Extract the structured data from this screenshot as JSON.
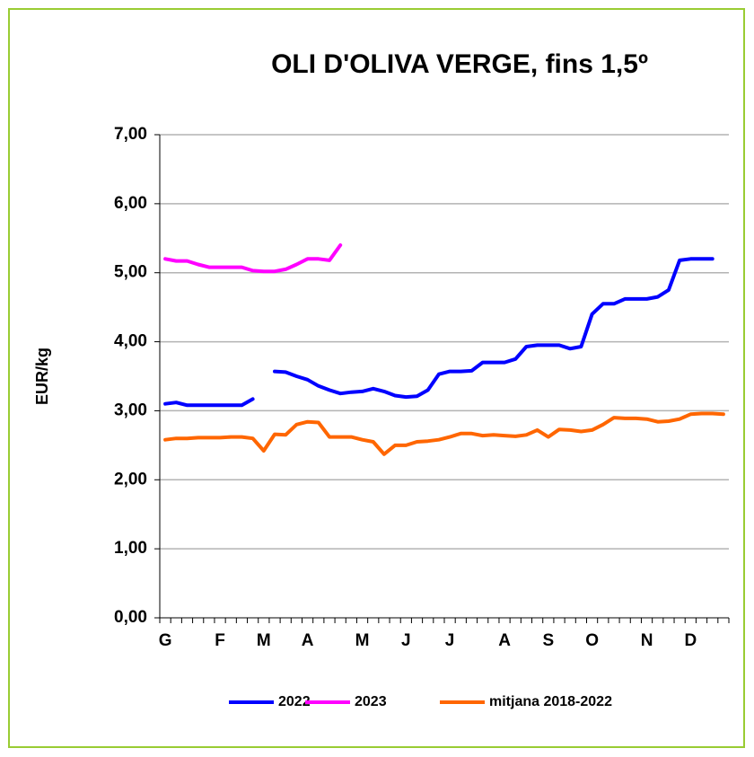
{
  "chart_data": {
    "type": "line",
    "title": "OLI D'OLIVA VERGE, fins 1,5º",
    "y_label": "EUR/kg",
    "categories": [
      "G",
      null,
      null,
      null,
      null,
      "F",
      null,
      null,
      null,
      "M",
      null,
      null,
      null,
      "A",
      null,
      null,
      null,
      null,
      "M",
      null,
      null,
      null,
      "J",
      null,
      null,
      null,
      "J",
      null,
      null,
      null,
      null,
      "A",
      null,
      null,
      null,
      "S",
      null,
      null,
      null,
      "O",
      null,
      null,
      null,
      null,
      "N",
      null,
      null,
      null,
      "D",
      null,
      null,
      null
    ],
    "series": [
      {
        "name": "2022",
        "color": "#0000ff",
        "values": [
          3.1,
          3.12,
          3.08,
          3.08,
          3.08,
          3.08,
          3.08,
          3.08,
          3.17,
          null,
          3.57,
          3.56,
          3.5,
          3.45,
          3.36,
          3.3,
          3.25,
          3.27,
          3.28,
          3.32,
          3.28,
          3.22,
          3.2,
          3.21,
          3.3,
          3.53,
          3.57,
          3.57,
          3.58,
          3.7,
          3.7,
          3.7,
          3.75,
          3.93,
          3.95,
          3.95,
          3.95,
          3.9,
          3.93,
          4.4,
          4.55,
          4.55,
          4.62,
          4.62,
          4.62,
          4.65,
          4.75,
          5.18,
          5.2,
          5.2,
          5.2,
          null
        ]
      },
      {
        "name": "2023",
        "color": "#ff00ff",
        "values": [
          5.2,
          5.17,
          5.17,
          5.12,
          5.08,
          5.08,
          5.08,
          5.08,
          5.03,
          5.02,
          5.02,
          5.05,
          5.12,
          5.2,
          5.2,
          5.18,
          5.4,
          null,
          null,
          null,
          null,
          null,
          null,
          null,
          null,
          null,
          null,
          null,
          null,
          null,
          null,
          null,
          null,
          null,
          null,
          null,
          null,
          null,
          null,
          null,
          null,
          null,
          null,
          null,
          null,
          null,
          null,
          null,
          null,
          null,
          null,
          null
        ]
      },
      {
        "name": "mitjana 2018-2022",
        "color": "#ff6600",
        "values": [
          2.58,
          2.6,
          2.6,
          2.61,
          2.61,
          2.61,
          2.62,
          2.62,
          2.6,
          2.42,
          2.66,
          2.65,
          2.8,
          2.84,
          2.83,
          2.62,
          2.62,
          2.62,
          2.58,
          2.55,
          2.37,
          2.5,
          2.5,
          2.55,
          2.56,
          2.58,
          2.62,
          2.67,
          2.67,
          2.64,
          2.65,
          2.64,
          2.63,
          2.65,
          2.72,
          2.62,
          2.73,
          2.72,
          2.7,
          2.72,
          2.8,
          2.9,
          2.89,
          2.89,
          2.88,
          2.84,
          2.85,
          2.88,
          2.95,
          2.96,
          2.96,
          2.95
        ]
      }
    ],
    "ylim": [
      0,
      7
    ],
    "yticks": [
      {
        "value": 0,
        "label": "0,00"
      },
      {
        "value": 1,
        "label": "1,00"
      },
      {
        "value": 2,
        "label": "2,00"
      },
      {
        "value": 3,
        "label": "3,00"
      },
      {
        "value": 4,
        "label": "4,00"
      },
      {
        "value": 5,
        "label": "5,00"
      },
      {
        "value": 6,
        "label": "6,00"
      },
      {
        "value": 7,
        "label": "7,00"
      }
    ],
    "grid": true,
    "legend": "bottom"
  }
}
